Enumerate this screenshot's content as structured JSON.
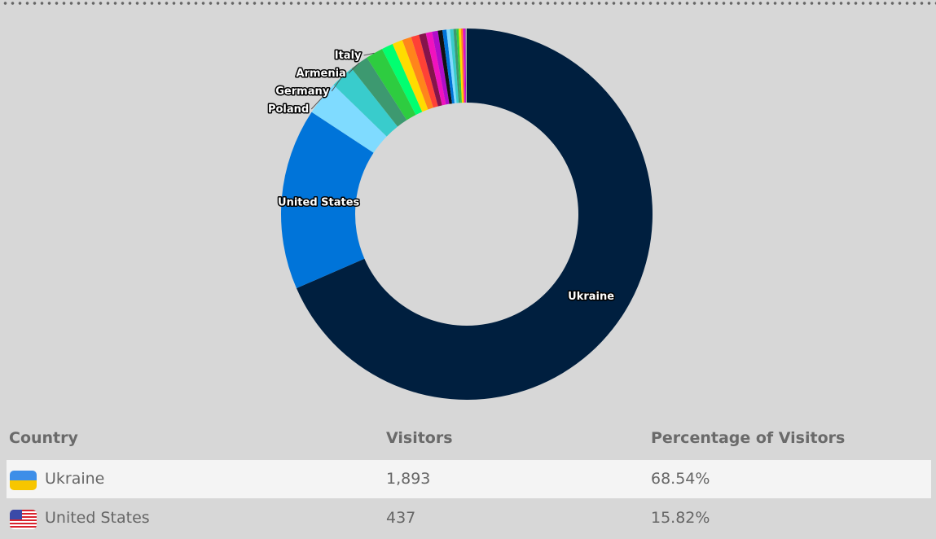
{
  "chart_data": {
    "type": "pie",
    "subtype": "donut",
    "title": "",
    "slices": [
      {
        "name": "Ukraine",
        "value": 68.54,
        "color": "#001f3f",
        "label": true
      },
      {
        "name": "United States",
        "value": 15.82,
        "color": "#0074d9",
        "label": true
      },
      {
        "name": "Poland",
        "value": 3.0,
        "color": "#7fdbff",
        "label": true
      },
      {
        "name": "Germany",
        "value": 2.1,
        "color": "#39cccc",
        "label": true
      },
      {
        "name": "Armenia",
        "value": 1.6,
        "color": "#3d9970",
        "label": true
      },
      {
        "name": "Italy",
        "value": 1.5,
        "color": "#2ecc40",
        "label": true
      },
      {
        "name": "",
        "value": 1.0,
        "color": "#01ff70"
      },
      {
        "name": "",
        "value": 0.9,
        "color": "#ffdc00"
      },
      {
        "name": "",
        "value": 0.8,
        "color": "#ff851b"
      },
      {
        "name": "",
        "value": 0.7,
        "color": "#ff4136"
      },
      {
        "name": "",
        "value": 0.6,
        "color": "#85144b"
      },
      {
        "name": "",
        "value": 0.55,
        "color": "#f012be"
      },
      {
        "name": "",
        "value": 0.5,
        "color": "#b10dc9"
      },
      {
        "name": "",
        "value": 0.4,
        "color": "#111111"
      },
      {
        "name": "",
        "value": 0.35,
        "color": "#0074d9"
      },
      {
        "name": "",
        "value": 0.3,
        "color": "#7fdbff"
      },
      {
        "name": "",
        "value": 0.3,
        "color": "#39cccc"
      },
      {
        "name": "",
        "value": 0.25,
        "color": "#3d9970"
      },
      {
        "name": "",
        "value": 0.2,
        "color": "#2ecc40"
      },
      {
        "name": "",
        "value": 0.2,
        "color": "#ffdc00"
      },
      {
        "name": "",
        "value": 0.15,
        "color": "#ff851b"
      },
      {
        "name": "",
        "value": 0.15,
        "color": "#f012be"
      },
      {
        "name": "",
        "value": 0.1,
        "color": "#b10dc9"
      },
      {
        "name": "",
        "value": 0.1,
        "color": "#aaaaaa"
      }
    ]
  },
  "table": {
    "headers": [
      "Country",
      "Visitors",
      "Percentage of Visitors"
    ],
    "rows": [
      {
        "country": "Ukraine",
        "flag": "ua-flag",
        "visitors": "1,893",
        "percent": "68.54%"
      },
      {
        "country": "United States",
        "flag": "us-flag",
        "visitors": "437",
        "percent": "15.82%"
      }
    ]
  }
}
